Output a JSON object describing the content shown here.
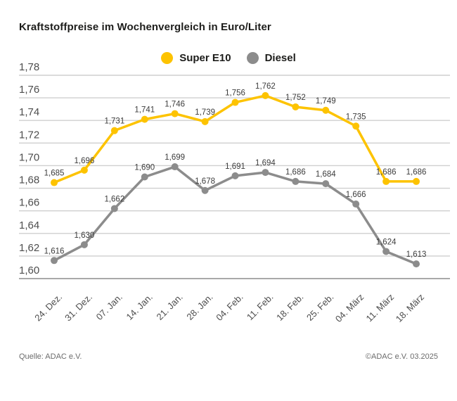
{
  "title": "Kraftstoffpreise im Wochenvergleich in Euro/Liter",
  "legend": [
    {
      "label": "Super E10",
      "color": "#FDC300"
    },
    {
      "label": "Diesel",
      "color": "#8C8C8C"
    }
  ],
  "footer": {
    "source": "Quelle: ADAC e.V.",
    "copyright": "©ADAC e.V. 03.2025"
  },
  "colors": {
    "grid": "#CFCFCF",
    "axis": "#A9A9A9",
    "tick_text": "#4d4d4d",
    "value_text": "#3c3c3c"
  },
  "chart_data": {
    "type": "line",
    "title": "Kraftstoffpreise im Wochenvergleich in Euro/Liter",
    "xlabel": "",
    "ylabel": "Euro/Liter",
    "categories": [
      "24. Dez.",
      "31. Dez.",
      "07. Jan.",
      "14. Jan.",
      "21. Jan.",
      "28. Jan.",
      "04. Feb.",
      "11. Feb.",
      "18. Feb.",
      "25. Feb.",
      "04. März",
      "11. März",
      "18. März"
    ],
    "series": [
      {
        "name": "Super E10",
        "color": "#FDC300",
        "values": [
          1.685,
          1.696,
          1.731,
          1.741,
          1.746,
          1.739,
          1.756,
          1.762,
          1.752,
          1.749,
          1.735,
          1.686,
          1.686
        ],
        "value_labels": [
          "1,685",
          "1,696",
          "1,731",
          "1,741",
          "1,746",
          "1,739",
          "1,756",
          "1,762",
          "1,752",
          "1,749",
          "1,735",
          "1,686",
          "1,686"
        ]
      },
      {
        "name": "Diesel",
        "color": "#8C8C8C",
        "values": [
          1.616,
          1.63,
          1.662,
          1.69,
          1.699,
          1.678,
          1.691,
          1.694,
          1.686,
          1.684,
          1.666,
          1.624,
          1.613
        ],
        "value_labels": [
          "1,616",
          "1,630",
          "1,662",
          "1,690",
          "1,699",
          "1,678",
          "1,691",
          "1,694",
          "1,686",
          "1,684",
          "1,666",
          "1,624",
          "1,613"
        ]
      }
    ],
    "ylim": [
      1.6,
      1.78
    ],
    "ytick_step": 0.02,
    "ytick_labels": [
      "1,78",
      "1,76",
      "1,74",
      "1,72",
      "1,70",
      "1,68",
      "1,66",
      "1,64",
      "1,62",
      "1,60"
    ],
    "grid": true,
    "legend_position": "top-center"
  }
}
